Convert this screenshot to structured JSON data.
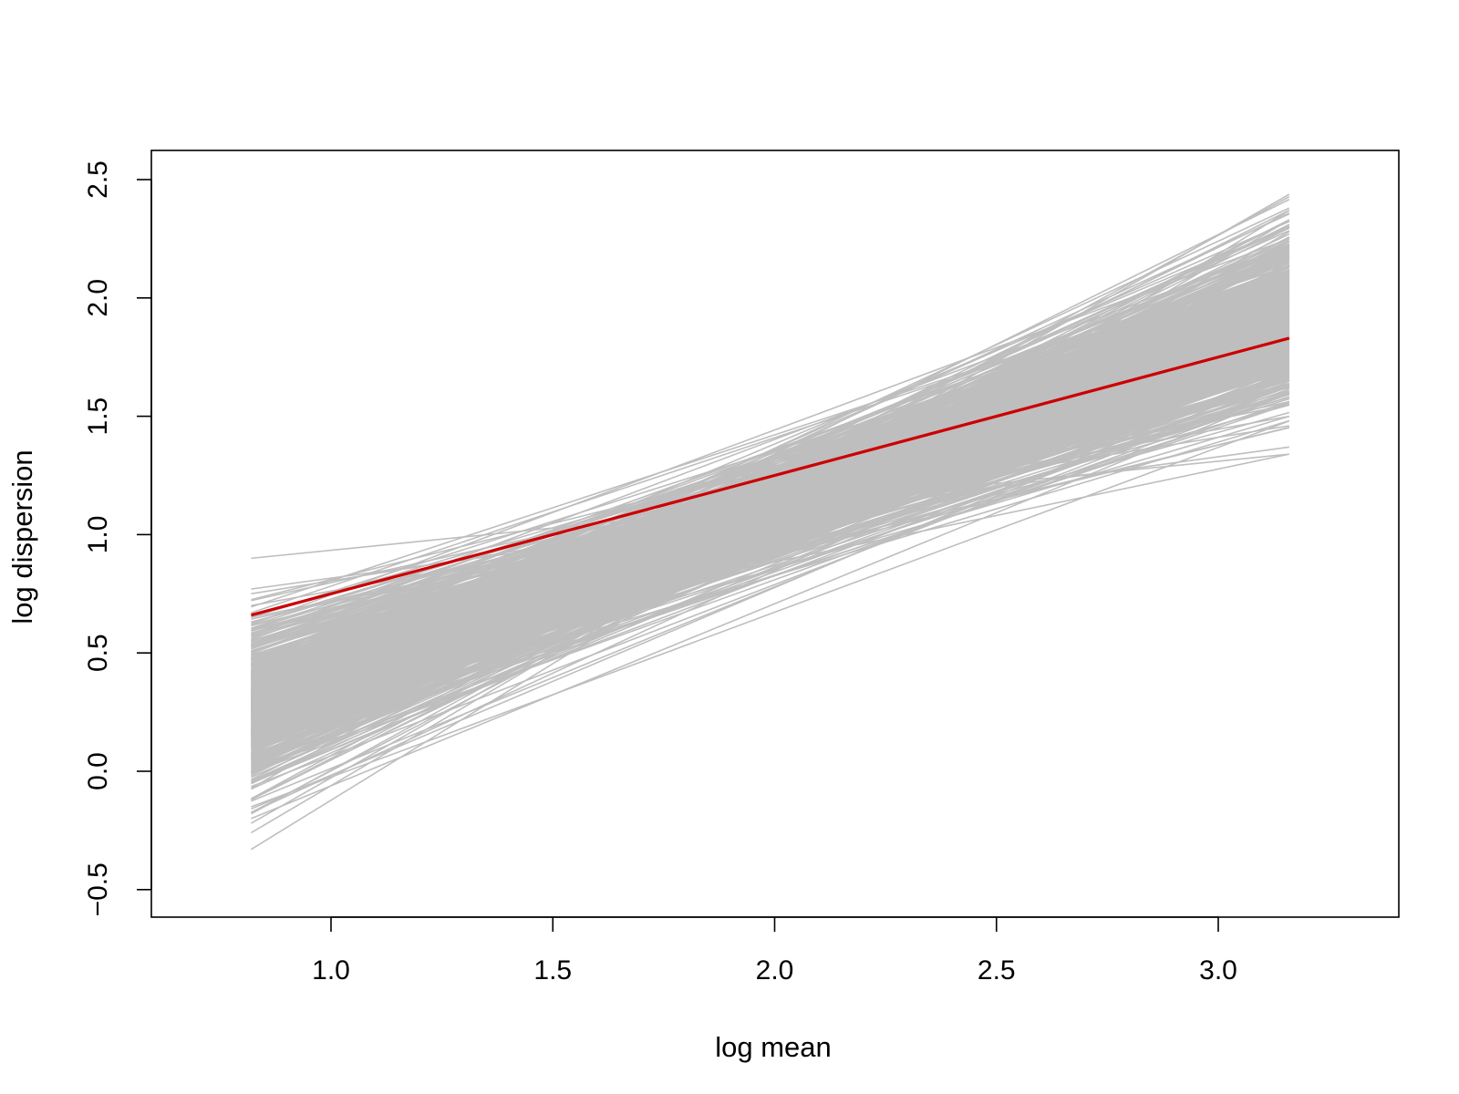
{
  "chart_data": {
    "type": "line",
    "title": "",
    "xlabel": "log mean",
    "ylabel": "log dispersion",
    "xlim": [
      0.6,
      3.4
    ],
    "ylim": [
      -0.6,
      2.62
    ],
    "x_ticks": [
      1.0,
      1.5,
      2.0,
      2.5,
      3.0
    ],
    "x_tick_labels": [
      "1.0",
      "1.5",
      "2.0",
      "2.5",
      "3.0"
    ],
    "y_ticks": [
      -0.5,
      0.0,
      0.5,
      1.0,
      1.5,
      2.0,
      2.5
    ],
    "y_tick_labels": [
      "−0.5",
      "0.0",
      "0.5",
      "1.0",
      "1.5",
      "2.0",
      "2.5"
    ],
    "grid": false,
    "legend": "none",
    "x_range_of_lines": [
      0.82,
      3.16
    ],
    "series": [
      {
        "style": "fitted",
        "color": "#cc0000",
        "x": [
          0.82,
          3.16
        ],
        "y": [
          0.66,
          1.83
        ]
      },
      {
        "style": "draw",
        "color": "#bebebe",
        "x": [
          0.82,
          3.16
        ],
        "y": [
          0.9,
          1.34
        ]
      },
      {
        "style": "draw",
        "color": "#bebebe",
        "x": [
          0.82,
          3.16
        ],
        "y": [
          0.77,
          1.37
        ]
      },
      {
        "style": "draw",
        "color": "#bebebe",
        "x": [
          0.82,
          3.16
        ],
        "y": [
          0.75,
          1.46
        ]
      },
      {
        "style": "draw",
        "color": "#bebebe",
        "x": [
          0.82,
          3.16
        ],
        "y": [
          0.7,
          1.5
        ]
      },
      {
        "style": "draw",
        "color": "#bebebe",
        "x": [
          0.82,
          3.16
        ],
        "y": [
          0.65,
          1.55
        ]
      },
      {
        "style": "draw",
        "color": "#bebebe",
        "x": [
          0.82,
          3.16
        ],
        "y": [
          0.6,
          1.62
        ]
      },
      {
        "style": "draw",
        "color": "#bebebe",
        "x": [
          0.82,
          3.16
        ],
        "y": [
          0.55,
          1.7
        ]
      },
      {
        "style": "draw",
        "color": "#bebebe",
        "x": [
          0.82,
          3.16
        ],
        "y": [
          0.48,
          1.75
        ]
      },
      {
        "style": "draw",
        "color": "#bebebe",
        "x": [
          0.82,
          3.16
        ],
        "y": [
          0.4,
          1.8
        ]
      },
      {
        "style": "draw",
        "color": "#bebebe",
        "x": [
          0.82,
          3.16
        ],
        "y": [
          0.32,
          1.85
        ]
      },
      {
        "style": "draw",
        "color": "#bebebe",
        "x": [
          0.82,
          3.16
        ],
        "y": [
          0.25,
          1.9
        ]
      },
      {
        "style": "draw",
        "color": "#bebebe",
        "x": [
          0.82,
          3.16
        ],
        "y": [
          0.18,
          1.95
        ]
      },
      {
        "style": "draw",
        "color": "#bebebe",
        "x": [
          0.82,
          3.16
        ],
        "y": [
          0.1,
          2.0
        ]
      },
      {
        "style": "draw",
        "color": "#bebebe",
        "x": [
          0.82,
          3.16
        ],
        "y": [
          0.03,
          2.05
        ]
      },
      {
        "style": "draw",
        "color": "#bebebe",
        "x": [
          0.82,
          3.16
        ],
        "y": [
          -0.05,
          2.1
        ]
      },
      {
        "style": "draw",
        "color": "#bebebe",
        "x": [
          0.82,
          3.16
        ],
        "y": [
          -0.12,
          2.15
        ]
      },
      {
        "style": "draw",
        "color": "#bebebe",
        "x": [
          0.82,
          3.16
        ],
        "y": [
          -0.18,
          2.22
        ]
      },
      {
        "style": "draw",
        "color": "#bebebe",
        "x": [
          0.82,
          3.16
        ],
        "y": [
          -0.22,
          2.28
        ]
      },
      {
        "style": "draw",
        "color": "#bebebe",
        "x": [
          0.82,
          3.16
        ],
        "y": [
          -0.26,
          2.33
        ]
      },
      {
        "style": "draw",
        "color": "#bebebe",
        "x": [
          0.82,
          3.16
        ],
        "y": [
          -0.33,
          2.37
        ]
      },
      {
        "style": "draw",
        "color": "#bebebe",
        "x": [
          0.82,
          3.16
        ],
        "y": [
          0.62,
          2.25
        ]
      },
      {
        "style": "draw",
        "color": "#bebebe",
        "x": [
          0.82,
          3.16
        ],
        "y": [
          0.45,
          2.3
        ]
      },
      {
        "style": "draw",
        "color": "#bebebe",
        "x": [
          0.82,
          3.16
        ],
        "y": [
          -0.2,
          1.6
        ]
      },
      {
        "style": "draw",
        "color": "#bebebe",
        "x": [
          0.82,
          3.16
        ],
        "y": [
          -0.15,
          1.48
        ]
      },
      {
        "style": "draw",
        "color": "#bebebe",
        "x": [
          0.82,
          3.16
        ],
        "y": [
          0.2,
          1.5
        ]
      },
      {
        "style": "draw",
        "color": "#bebebe",
        "x": [
          0.82,
          3.16
        ],
        "y": [
          0.35,
          2.2
        ]
      },
      {
        "style": "draw",
        "color": "#bebebe",
        "x": [
          0.82,
          3.16
        ],
        "y": [
          0.0,
          1.7
        ]
      }
    ]
  }
}
